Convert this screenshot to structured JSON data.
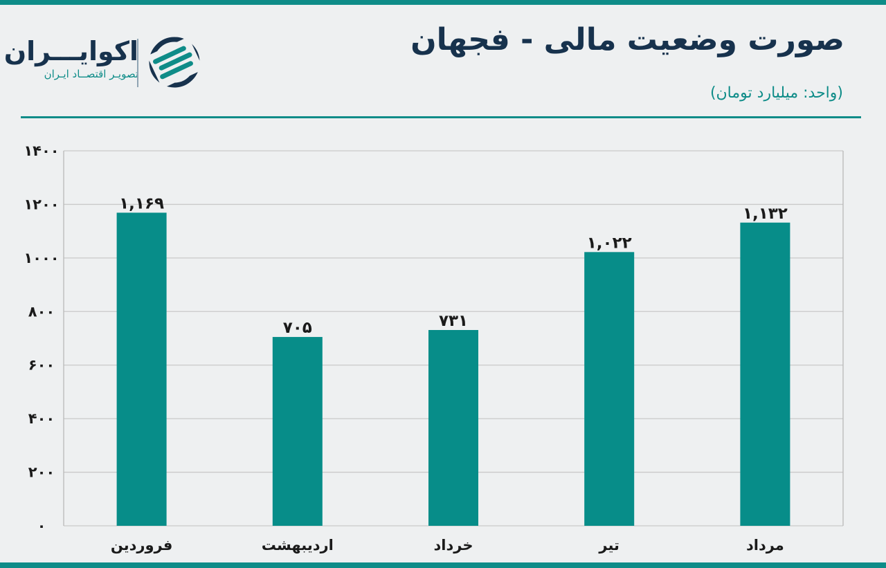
{
  "header": {
    "title": "صورت وضعیت مالی - فجهان",
    "subtitle": "(واحد: میلیارد تومان)"
  },
  "logo": {
    "name": "اکوایـــران",
    "tagline": "تصویـر اقتصــاد ایـران"
  },
  "colors": {
    "bar": "#078d89",
    "accent": "#0e8c88",
    "title": "#17324d"
  },
  "chart_data": {
    "type": "bar",
    "categories": [
      "فروردین",
      "اردیبهشت",
      "خرداد",
      "تیر",
      "مرداد"
    ],
    "values": [
      1169,
      705,
      731,
      1022,
      1132
    ],
    "value_labels": [
      "۱,۱۶۹",
      "۷۰۵",
      "۷۳۱",
      "۱,۰۲۲",
      "۱,۱۳۲"
    ],
    "y_ticks": [
      0,
      200,
      400,
      600,
      800,
      1000,
      1200,
      1400
    ],
    "y_tick_labels": [
      "۰",
      "۲۰۰",
      "۴۰۰",
      "۶۰۰",
      "۸۰۰",
      "۱۰۰۰",
      "۱۲۰۰",
      "۱۴۰۰"
    ],
    "ylim": [
      0,
      1400
    ],
    "grid": true,
    "xlabel": "",
    "ylabel": ""
  }
}
